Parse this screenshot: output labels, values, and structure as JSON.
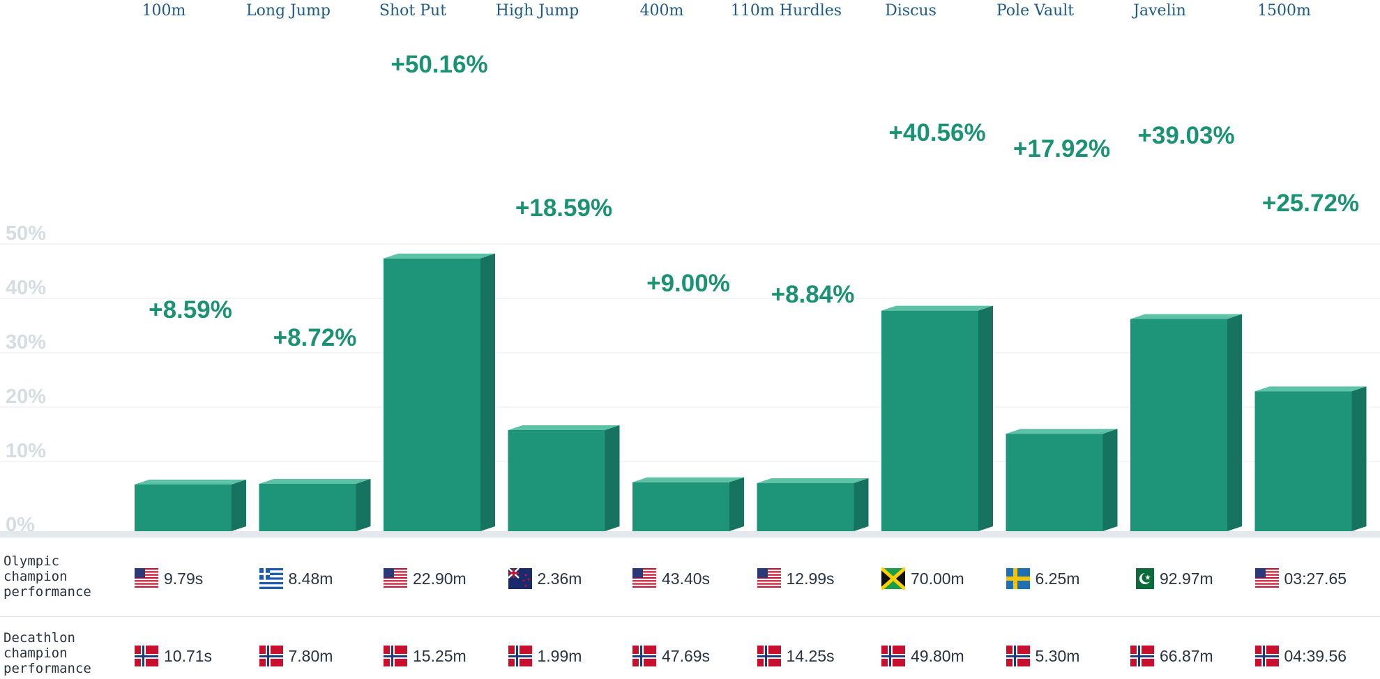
{
  "colors": {
    "bar_front": "#1e9478",
    "bar_side": "#157360",
    "bar_top": "#5dc2a6",
    "pct_label": "#1c9275",
    "event_label": "#1f5a86",
    "axis_label": "#d4dde2",
    "gridline": "#e6eaed",
    "baseline": "#e2e8ec"
  },
  "row_labels": {
    "olympic": "Olympic\nchampion\nperformance",
    "decathlon": "Decathlon\nchampion\nperformance"
  },
  "chart_data": {
    "type": "bar",
    "title": "",
    "xlabel": "",
    "ylabel": "",
    "categories": [
      "100m",
      "Long Jump",
      "Shot Put",
      "High Jump",
      "400m",
      "110m Hurdles",
      "Discus",
      "Pole Vault",
      "Javelin",
      "1500m"
    ],
    "values": [
      8.59,
      8.72,
      50.16,
      18.59,
      9.0,
      8.84,
      40.56,
      17.92,
      39.03,
      25.72
    ],
    "data_labels": [
      "+8.59%",
      "+8.72%",
      "+50.16%",
      "+18.59%",
      "+9.00%",
      "+8.84%",
      "+40.56%",
      "+17.92%",
      "+39.03%",
      "+25.72%"
    ],
    "ylim": [
      0,
      50
    ],
    "yticks": [
      0,
      10,
      20,
      30,
      40,
      50
    ],
    "ytick_labels": [
      "0%",
      "10%",
      "20%",
      "30%",
      "40%",
      "50%"
    ],
    "grid": true,
    "legend": "none"
  },
  "olympic": [
    {
      "flag": "usa-flag-icon",
      "value": "9.79s"
    },
    {
      "flag": "greece-flag-icon",
      "value": "8.48m"
    },
    {
      "flag": "usa-flag-icon",
      "value": "22.90m"
    },
    {
      "flag": "new-zealand-flag-icon",
      "value": "2.36m"
    },
    {
      "flag": "usa-flag-icon",
      "value": "43.40s"
    },
    {
      "flag": "usa-flag-icon",
      "value": "12.99s"
    },
    {
      "flag": "jamaica-flag-icon",
      "value": "70.00m"
    },
    {
      "flag": "sweden-flag-icon",
      "value": "6.25m"
    },
    {
      "flag": "pakistan-flag-icon",
      "value": "92.97m"
    },
    {
      "flag": "usa-flag-icon",
      "value": "03:27.65"
    }
  ],
  "decathlon": [
    {
      "flag": "norway-flag-icon",
      "value": "10.71s"
    },
    {
      "flag": "norway-flag-icon",
      "value": "7.80m"
    },
    {
      "flag": "norway-flag-icon",
      "value": "15.25m"
    },
    {
      "flag": "norway-flag-icon",
      "value": "1.99m"
    },
    {
      "flag": "norway-flag-icon",
      "value": "47.69s"
    },
    {
      "flag": "norway-flag-icon",
      "value": "14.25s"
    },
    {
      "flag": "norway-flag-icon",
      "value": "49.80m"
    },
    {
      "flag": "norway-flag-icon",
      "value": "5.30m"
    },
    {
      "flag": "norway-flag-icon",
      "value": "66.87m"
    },
    {
      "flag": "norway-flag-icon",
      "value": "04:39.56"
    }
  ]
}
